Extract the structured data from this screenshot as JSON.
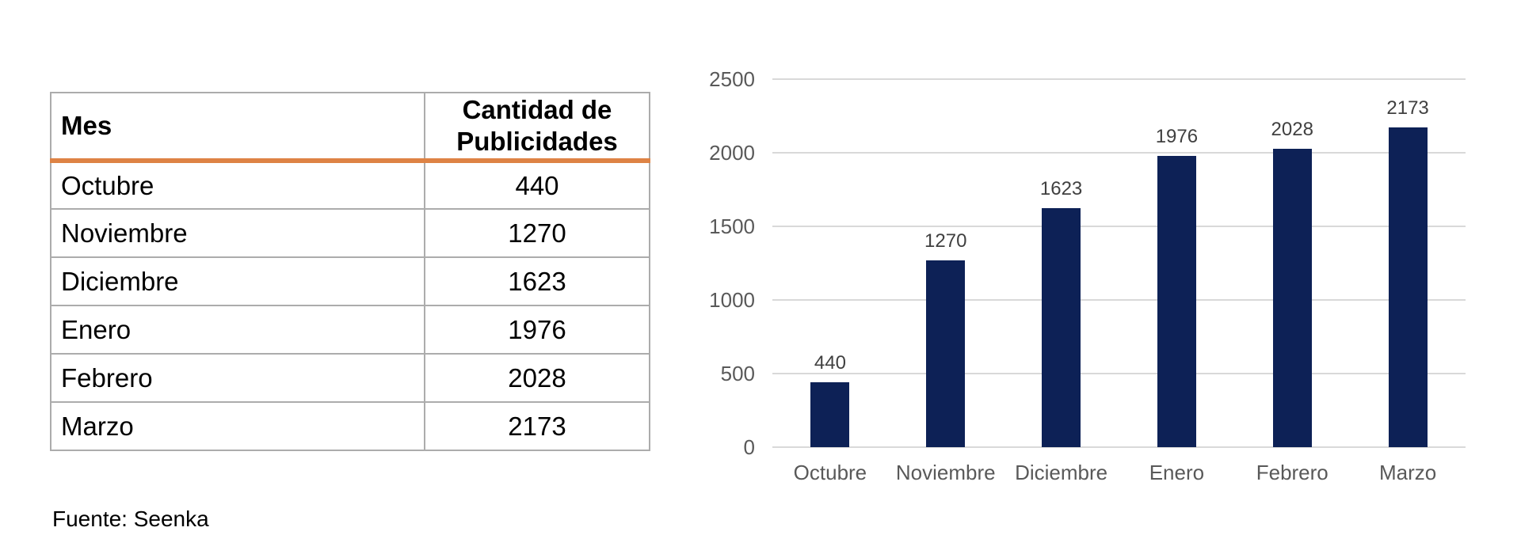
{
  "table": {
    "columns": [
      "Mes",
      "Cantidad de Publicidades"
    ],
    "header": {
      "col1": "Mes",
      "col2_line1": "Cantidad de",
      "col2_line2": "Publicidades"
    },
    "rows": [
      {
        "mes": "Octubre",
        "cantidad": "440"
      },
      {
        "mes": "Noviembre",
        "cantidad": "1270"
      },
      {
        "mes": "Diciembre",
        "cantidad": "1623"
      },
      {
        "mes": "Enero",
        "cantidad": "1976"
      },
      {
        "mes": "Febrero",
        "cantidad": "2028"
      },
      {
        "mes": "Marzo",
        "cantidad": "2173"
      }
    ],
    "source_note": "Fuente: Seenka",
    "accent_color": "#DE8345",
    "border_color": "#ACACAC"
  },
  "chart_data": {
    "type": "bar",
    "title": "",
    "xlabel": "",
    "ylabel": "",
    "categories": [
      "Octubre",
      "Noviembre",
      "Diciembre",
      "Enero",
      "Febrero",
      "Marzo"
    ],
    "values": [
      440,
      1270,
      1623,
      1976,
      2028,
      2173
    ],
    "data_labels": [
      "440",
      "1270",
      "1623",
      "1976",
      "2028",
      "2173"
    ],
    "y_ticks": [
      0,
      500,
      1000,
      1500,
      2000,
      2500
    ],
    "ylim": [
      0,
      2500
    ],
    "grid": true,
    "legend": false,
    "bar_color": "#0D2156",
    "gridline_color": "#D9D9D9",
    "axis_label_color": "#595959",
    "value_label_color": "#404040"
  }
}
